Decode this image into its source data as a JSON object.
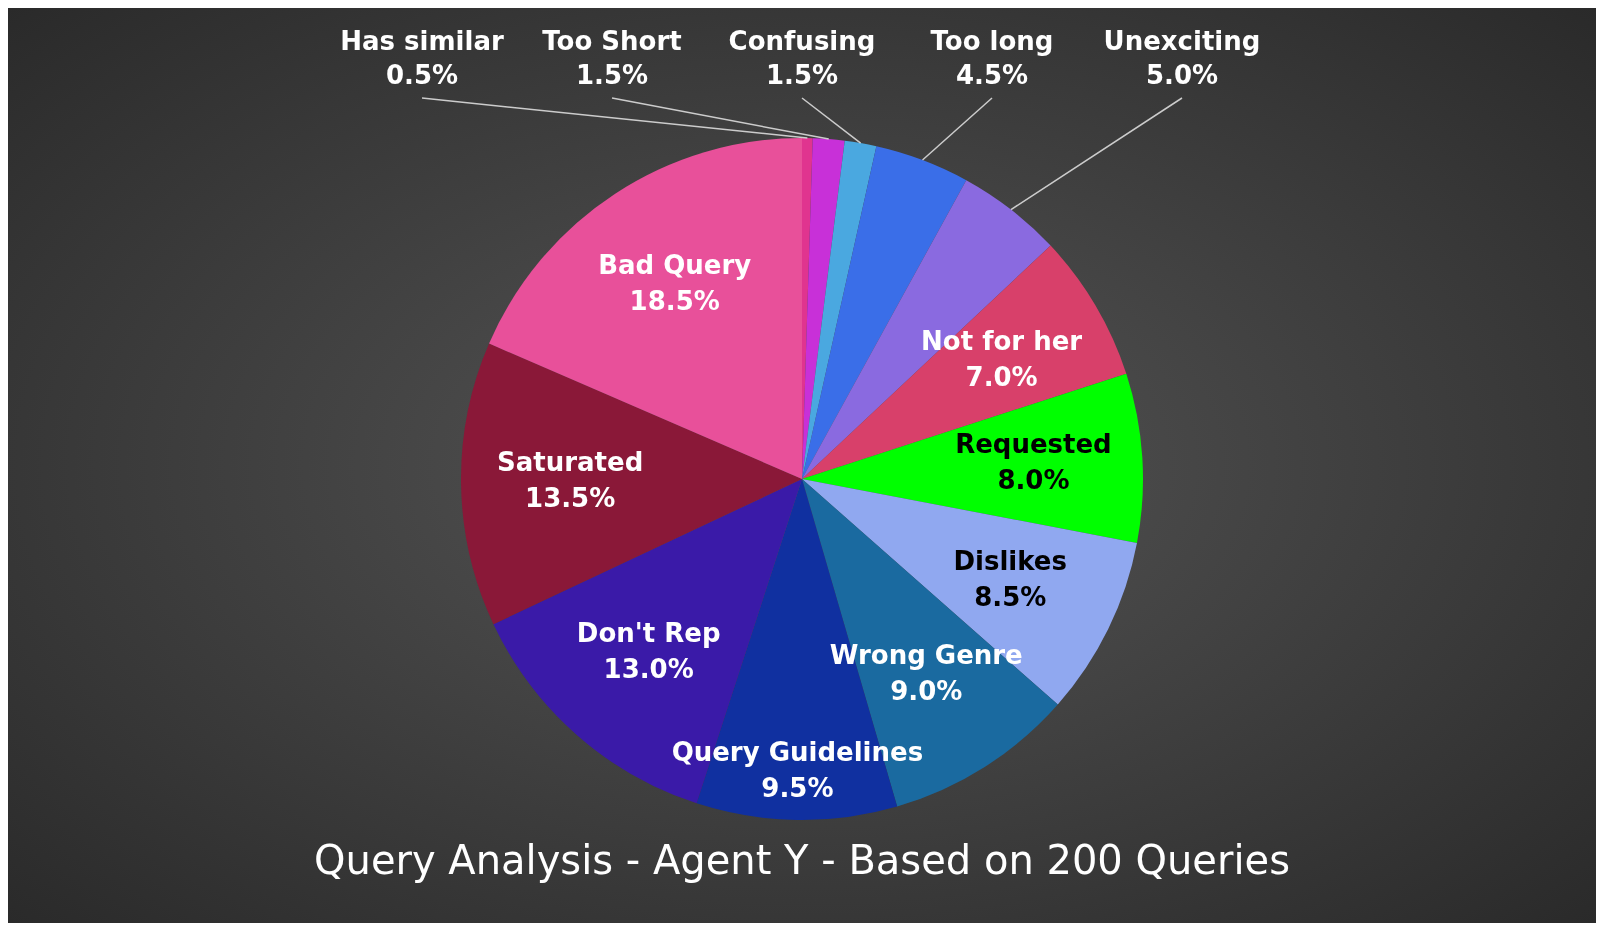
{
  "chart_data": {
    "type": "pie",
    "title": "Query Analysis - Agent Y - Based on 200 Queries",
    "categories": [
      "Has similar",
      "Too Short",
      "Confusing",
      "Too long",
      "Unexciting",
      "Not for her",
      "Requested",
      "Dislikes",
      "Wrong Genre",
      "Query Guidelines",
      "Don't Rep",
      "Saturated",
      "Bad Query"
    ],
    "values": [
      0.5,
      1.5,
      1.5,
      4.5,
      5.0,
      7.0,
      8.0,
      8.5,
      9.0,
      9.5,
      13.0,
      13.5,
      18.5
    ],
    "value_labels": [
      "0.5%",
      "1.5%",
      "1.5%",
      "4.5%",
      "5.0%",
      "7.0%",
      "8.0%",
      "8.5%",
      "9.0%",
      "9.5%",
      "13.0%",
      "13.5%",
      "18.5%"
    ],
    "colors": [
      "#e0348f",
      "#c830d8",
      "#4aa8e0",
      "#3a6ee8",
      "#8a6ae0",
      "#d8406a",
      "#00ff00",
      "#90a8f0",
      "#1a6aa0",
      "#1030a0",
      "#3a1aa8",
      "#8a1838",
      "#e8509a"
    ],
    "legend": false
  }
}
